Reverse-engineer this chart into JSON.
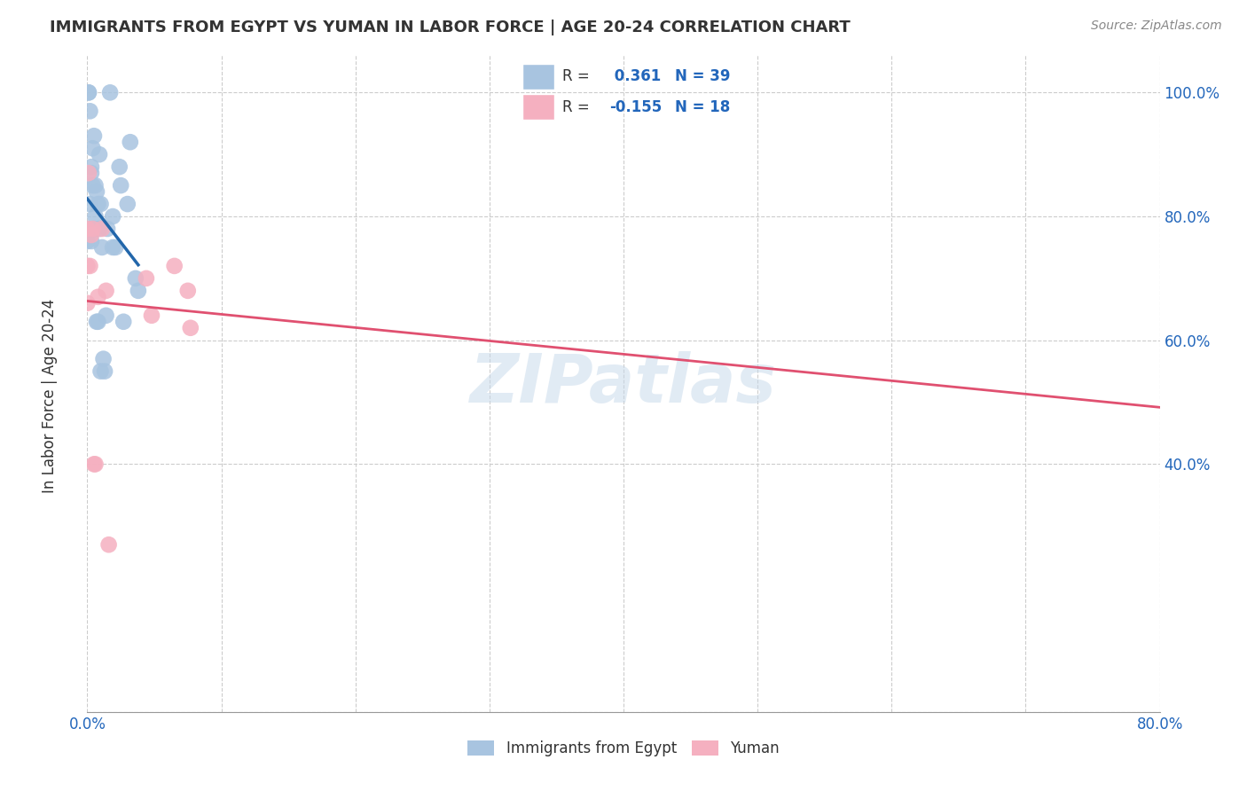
{
  "title": "IMMIGRANTS FROM EGYPT VS YUMAN IN LABOR FORCE | AGE 20-24 CORRELATION CHART",
  "source": "Source: ZipAtlas.com",
  "ylabel": "In Labor Force | Age 20-24",
  "xlim": [
    0.0,
    0.8
  ],
  "ylim": [
    0.0,
    1.06
  ],
  "egypt_R": 0.361,
  "egypt_N": 39,
  "yuman_R": -0.155,
  "yuman_N": 18,
  "egypt_color": "#a8c4e0",
  "egypt_line_color": "#2266aa",
  "yuman_color": "#f5b0c0",
  "yuman_line_color": "#e05070",
  "watermark": "ZIPatlas",
  "egypt_x": [
    0.0,
    0.0,
    0.001,
    0.001,
    0.002,
    0.002,
    0.003,
    0.003,
    0.003,
    0.004,
    0.004,
    0.005,
    0.005,
    0.006,
    0.006,
    0.007,
    0.007,
    0.008,
    0.008,
    0.009,
    0.009,
    0.01,
    0.01,
    0.011,
    0.012,
    0.013,
    0.014,
    0.015,
    0.017,
    0.019,
    0.021,
    0.025,
    0.027,
    0.03,
    0.032,
    0.036,
    0.038,
    0.019,
    0.024
  ],
  "egypt_y": [
    0.78,
    0.76,
    1.0,
    1.0,
    0.97,
    0.82,
    0.88,
    0.87,
    0.76,
    0.91,
    0.85,
    0.93,
    0.78,
    0.85,
    0.8,
    0.84,
    0.63,
    0.82,
    0.63,
    0.9,
    0.78,
    0.82,
    0.55,
    0.75,
    0.57,
    0.55,
    0.64,
    0.78,
    1.0,
    0.75,
    0.75,
    0.85,
    0.63,
    0.82,
    0.92,
    0.7,
    0.68,
    0.8,
    0.88
  ],
  "yuman_x": [
    0.0,
    0.0,
    0.0,
    0.001,
    0.002,
    0.003,
    0.004,
    0.005,
    0.006,
    0.008,
    0.011,
    0.014,
    0.016,
    0.044,
    0.048,
    0.065,
    0.075,
    0.077
  ],
  "yuman_y": [
    0.78,
    0.72,
    0.66,
    0.87,
    0.72,
    0.77,
    0.78,
    0.4,
    0.4,
    0.67,
    0.78,
    0.68,
    0.27,
    0.7,
    0.64,
    0.72,
    0.68,
    0.62
  ],
  "ytick_vals": [
    0.0,
    0.4,
    0.6,
    0.8,
    1.0
  ],
  "ytick_labels": [
    "",
    "40.0%",
    "60.0%",
    "80.0%",
    "100.0%"
  ],
  "xtick_vals": [
    0.0,
    0.1,
    0.2,
    0.3,
    0.4,
    0.5,
    0.6,
    0.7,
    0.8
  ],
  "xtick_labels": [
    "0.0%",
    "",
    "",
    "",
    "",
    "",
    "",
    "",
    "80.0%"
  ],
  "grid_color": "#cccccc",
  "title_fontsize": 13,
  "axis_tick_color": "#2266bb",
  "axis_tick_fontsize": 12
}
